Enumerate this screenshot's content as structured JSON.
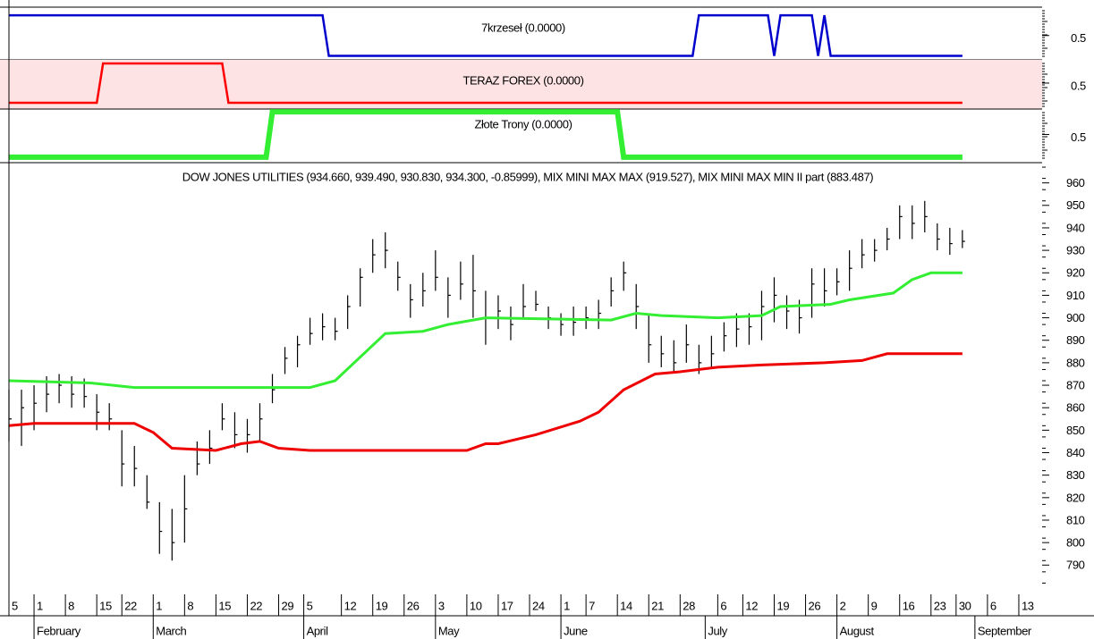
{
  "chart_data": [
    {
      "type": "line",
      "title": "7krzeseł (0.0000)",
      "xlim": [
        0,
        164
      ],
      "ylim": [
        -0.1,
        1.2
      ],
      "yticks": [
        0.5
      ],
      "series": [
        {
          "color": "#0000cc",
          "x": [
            0,
            50,
            51,
            109,
            110,
            121,
            122,
            123,
            128,
            129,
            130,
            131,
            152
          ],
          "values": [
            1,
            1,
            0,
            0,
            1,
            1,
            0,
            1,
            1,
            0,
            1,
            0,
            0
          ]
        }
      ]
    },
    {
      "type": "line",
      "title": "TERAZ FOREX (0.0000)",
      "background": "#fde3e3",
      "xlim": [
        0,
        164
      ],
      "ylim": [
        -0.16,
        1.09
      ],
      "yticks": [
        0.5
      ],
      "series": [
        {
          "color": "#ff0000",
          "x": [
            0,
            14,
            15,
            34,
            35,
            152
          ],
          "values": [
            0,
            0,
            1,
            1,
            0,
            0
          ]
        }
      ]
    },
    {
      "type": "line",
      "title": "Złote Trony (0.0000)",
      "xlim": [
        0,
        164
      ],
      "ylim": [
        -0.12,
        1.06
      ],
      "yticks": [
        0.5
      ],
      "series": [
        {
          "color": "#33ee33",
          "x": [
            0,
            41,
            42,
            97,
            98,
            152
          ],
          "values": [
            0,
            0,
            1,
            1,
            0,
            0
          ]
        }
      ]
    },
    {
      "type": "ohlc",
      "title": "DOW JONES UTILITIES (934.660, 939.490, 930.830, 934.300, -0.85999), MIX MINI MAX MAX (919.527), MIX MINI MAX MIN II part (883.487)",
      "xlim": [
        0,
        164
      ],
      "ylim": [
        777,
        969
      ],
      "yticks": [
        790,
        800,
        810,
        820,
        830,
        840,
        850,
        860,
        870,
        880,
        890,
        900,
        910,
        920,
        930,
        940,
        950,
        960
      ],
      "xticks": [
        {
          "value": 0,
          "label": "5"
        },
        {
          "value": 4,
          "label": "1"
        },
        {
          "value": 9,
          "label": "8"
        },
        {
          "value": 14,
          "label": "15"
        },
        {
          "value": 18,
          "label": "22"
        },
        {
          "value": 23,
          "label": "1"
        },
        {
          "value": 28,
          "label": "8"
        },
        {
          "value": 33,
          "label": "15"
        },
        {
          "value": 38,
          "label": "22"
        },
        {
          "value": 43,
          "label": "29"
        },
        {
          "value": 47,
          "label": "5"
        },
        {
          "value": 53,
          "label": "12"
        },
        {
          "value": 58,
          "label": "19"
        },
        {
          "value": 63,
          "label": "26"
        },
        {
          "value": 68,
          "label": "3"
        },
        {
          "value": 73,
          "label": "10"
        },
        {
          "value": 78,
          "label": "17"
        },
        {
          "value": 83,
          "label": "24"
        },
        {
          "value": 88,
          "label": "1"
        },
        {
          "value": 92,
          "label": "7"
        },
        {
          "value": 97,
          "label": "14"
        },
        {
          "value": 102,
          "label": "21"
        },
        {
          "value": 107,
          "label": "28"
        },
        {
          "value": 113,
          "label": "6"
        },
        {
          "value": 117,
          "label": "12"
        },
        {
          "value": 122,
          "label": "19"
        },
        {
          "value": 127,
          "label": "26"
        },
        {
          "value": 132,
          "label": "2"
        },
        {
          "value": 137,
          "label": "9"
        },
        {
          "value": 142,
          "label": "16"
        },
        {
          "value": 147,
          "label": "23"
        },
        {
          "value": 151,
          "label": "30"
        },
        {
          "value": 156,
          "label": "6"
        },
        {
          "value": 161,
          "label": "13"
        }
      ],
      "month_ticks": [
        {
          "value": 4,
          "label": "February"
        },
        {
          "value": 23,
          "label": "March"
        },
        {
          "value": 47,
          "label": "April"
        },
        {
          "value": 68,
          "label": "May"
        },
        {
          "value": 88,
          "label": "June"
        },
        {
          "value": 111,
          "label": "July"
        },
        {
          "value": 132,
          "label": "August"
        },
        {
          "value": 154,
          "label": "September"
        }
      ],
      "bars": {
        "x": [
          0,
          2,
          4,
          6,
          8,
          10,
          12,
          14,
          16,
          18,
          20,
          22,
          24,
          26,
          28,
          30,
          32,
          34,
          36,
          38,
          40,
          42,
          44,
          46,
          48,
          50,
          52,
          54,
          56,
          58,
          60,
          62,
          64,
          66,
          68,
          70,
          72,
          74,
          76,
          78,
          80,
          82,
          84,
          86,
          88,
          90,
          92,
          94,
          96,
          98,
          100,
          102,
          104,
          106,
          108,
          110,
          112,
          114,
          116,
          118,
          120,
          122,
          124,
          126,
          128,
          130,
          132,
          134,
          136,
          138,
          140,
          142,
          144,
          146,
          148,
          150,
          152
        ],
        "high": [
          868,
          868,
          870,
          874,
          875,
          874,
          873,
          866,
          862,
          850,
          843,
          830,
          818,
          815,
          830,
          845,
          850,
          862,
          858,
          855,
          862,
          875,
          887,
          892,
          900,
          902,
          900,
          910,
          922,
          935,
          938,
          925,
          915,
          920,
          930,
          918,
          925,
          928,
          912,
          910,
          905,
          915,
          912,
          905,
          902,
          905,
          905,
          908,
          918,
          925,
          915,
          902,
          892,
          890,
          897,
          888,
          892,
          898,
          902,
          902,
          912,
          918,
          910,
          908,
          922,
          922,
          922,
          930,
          935,
          935,
          940,
          950,
          950,
          952,
          942,
          940,
          939
        ],
        "low": [
          845,
          843,
          850,
          858,
          862,
          860,
          860,
          850,
          850,
          825,
          825,
          815,
          795,
          792,
          800,
          830,
          835,
          850,
          842,
          840,
          845,
          862,
          875,
          878,
          888,
          890,
          890,
          895,
          905,
          920,
          922,
          912,
          900,
          905,
          912,
          900,
          908,
          900,
          888,
          895,
          890,
          900,
          903,
          895,
          892,
          892,
          895,
          895,
          905,
          912,
          895,
          880,
          878,
          876,
          880,
          875,
          878,
          885,
          887,
          888,
          890,
          898,
          895,
          893,
          900,
          905,
          910,
          912,
          922,
          925,
          930,
          935,
          935,
          938,
          930,
          928,
          931
        ],
        "close": [
          855,
          860,
          862,
          866,
          870,
          866,
          865,
          858,
          855,
          835,
          833,
          818,
          805,
          800,
          815,
          835,
          842,
          855,
          848,
          848,
          855,
          868,
          882,
          888,
          893,
          896,
          894,
          905,
          918,
          928,
          930,
          918,
          908,
          912,
          918,
          910,
          915,
          912,
          900,
          903,
          897,
          905,
          906,
          900,
          897,
          898,
          900,
          902,
          912,
          920,
          905,
          888,
          884,
          880,
          888,
          880,
          884,
          892,
          895,
          896,
          905,
          910,
          903,
          900,
          915,
          912,
          916,
          922,
          928,
          930,
          935,
          945,
          942,
          945,
          935,
          933,
          934
        ]
      },
      "series": [
        {
          "color": "#33ee33",
          "x": [
            0,
            13,
            20,
            48,
            52,
            60,
            66,
            70,
            76,
            96,
            100,
            104,
            113,
            120,
            123,
            131,
            134,
            141,
            144,
            147,
            152
          ],
          "values": [
            872,
            871,
            869,
            869,
            872,
            893,
            894,
            897,
            900,
            899,
            902,
            901,
            900,
            901,
            905,
            906,
            908,
            911,
            917,
            920,
            920
          ]
        },
        {
          "color": "#ee0000",
          "x": [
            0,
            4,
            20,
            23,
            26,
            33,
            37,
            40,
            43,
            48,
            73,
            76,
            78,
            84,
            91,
            94,
            98,
            103,
            107,
            113,
            120,
            130,
            136,
            140,
            152
          ],
          "values": [
            852,
            853,
            853,
            849,
            842,
            841,
            844,
            845,
            842,
            841,
            841,
            844,
            844,
            848,
            854,
            858,
            868,
            875,
            876,
            878,
            879,
            880,
            881,
            884,
            884
          ]
        }
      ]
    }
  ]
}
